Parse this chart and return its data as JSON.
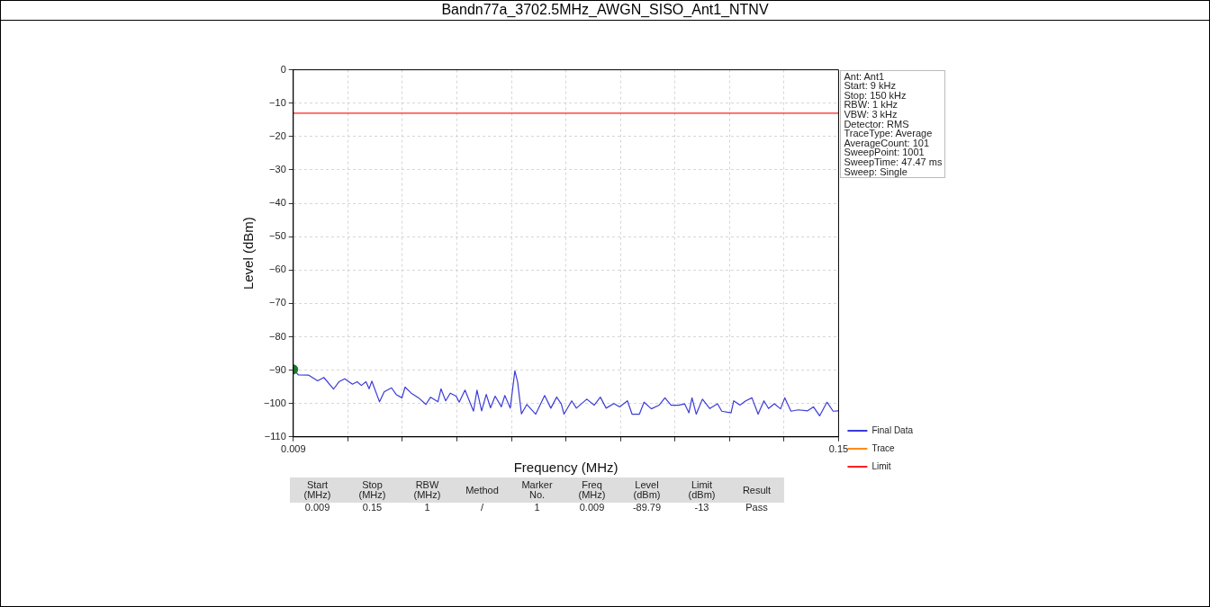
{
  "chart_data": {
    "type": "line",
    "title": "Bandn77a_3702.5MHz_AWGN_SISO_Ant1_NTNV",
    "xlabel": "Frequency (MHz)",
    "ylabel": "Level (dBm)",
    "xlim": [
      0.009,
      0.15
    ],
    "xticks": [
      0.009,
      {
        "value": 0.0231,
        "label": null
      },
      {
        "value": 0.0372,
        "label": null
      },
      {
        "value": 0.0513,
        "label": null
      },
      {
        "value": 0.0654,
        "label": null
      },
      {
        "value": 0.0795,
        "label": null
      },
      {
        "value": 0.0936,
        "label": null
      },
      {
        "value": 0.1077,
        "label": null
      },
      {
        "value": 0.1218,
        "label": null
      },
      {
        "value": 0.1359,
        "label": null
      },
      0.15
    ],
    "ylim": [
      -110,
      0
    ],
    "yticks": [
      0,
      -10,
      -20,
      -30,
      -40,
      -50,
      -60,
      -70,
      -80,
      -90,
      -100,
      -110
    ],
    "grid": true,
    "legend": "bottom right",
    "marker": "none",
    "line_style": "solid",
    "series": [
      {
        "name": "Final Data",
        "color": "#3b3bd6",
        "x": [
          0.009,
          0.0103,
          0.013,
          0.0153,
          0.0169,
          0.0194,
          0.0208,
          0.0223,
          0.0243,
          0.0255,
          0.0266,
          0.0278,
          0.0286,
          0.0293,
          0.0313,
          0.0325,
          0.0344,
          0.0356,
          0.0371,
          0.0379,
          0.0395,
          0.0414,
          0.0433,
          0.0445,
          0.0464,
          0.0472,
          0.0484,
          0.0496,
          0.0511,
          0.0519,
          0.0534,
          0.0556,
          0.0565,
          0.0577,
          0.0589,
          0.06,
          0.0612,
          0.0628,
          0.0637,
          0.0651,
          0.0663,
          0.067,
          0.068,
          0.0694,
          0.0717,
          0.074,
          0.0756,
          0.0771,
          0.0783,
          0.079,
          0.081,
          0.0822,
          0.0849,
          0.0868,
          0.0884,
          0.0899,
          0.0919,
          0.0934,
          0.0954,
          0.0966,
          0.0985,
          0.0997,
          0.1016,
          0.1036,
          0.1051,
          0.1067,
          0.1086,
          0.1102,
          0.1113,
          0.1121,
          0.1132,
          0.1148,
          0.1167,
          0.1187,
          0.1198,
          0.1222,
          0.1229,
          0.1245,
          0.126,
          0.1276,
          0.1292,
          0.1307,
          0.1319,
          0.1334,
          0.135,
          0.1361,
          0.1377,
          0.1396,
          0.142,
          0.1435,
          0.1451,
          0.147,
          0.1486,
          0.15
        ],
        "values": [
          -89.8,
          -91.4,
          -91.5,
          -93.2,
          -92.2,
          -95.7,
          -93.5,
          -92.6,
          -94.2,
          -93.5,
          -94.6,
          -93.5,
          -95.6,
          -93.3,
          -99.5,
          -96.5,
          -95.3,
          -97.3,
          -98.3,
          -95.1,
          -96.9,
          -98.3,
          -100.3,
          -98.1,
          -99.5,
          -95.6,
          -99.2,
          -96.9,
          -97.8,
          -99.6,
          -96,
          -102.3,
          -96,
          -102.2,
          -97.3,
          -101.3,
          -97.8,
          -101,
          -97.6,
          -101.4,
          -90.2,
          -93.5,
          -103.1,
          -100.3,
          -103.2,
          -97.6,
          -101.4,
          -98.1,
          -100.1,
          -103.2,
          -99.2,
          -101.4,
          -98.7,
          -100.5,
          -98.1,
          -101.4,
          -100,
          -101,
          -99.2,
          -103.2,
          -103.2,
          -99.6,
          -101.6,
          -100.5,
          -98.3,
          -100.5,
          -100.5,
          -100.1,
          -102.8,
          -98.3,
          -103.2,
          -98.7,
          -101.5,
          -100.1,
          -102.3,
          -102.8,
          -99.2,
          -100.5,
          -99.2,
          -98.3,
          -103.2,
          -99.2,
          -101.5,
          -100.1,
          -101.6,
          -98.3,
          -102.3,
          -101.9,
          -102.2,
          -101,
          -103.7,
          -99.6,
          -102.3,
          -102.2
        ]
      },
      {
        "name": "Trace",
        "color": "#ff8c1a"
      },
      {
        "name": "Limit",
        "color": "#ff2020",
        "x": [
          0.009,
          0.15
        ],
        "values": [
          -13,
          -13
        ]
      },
      {
        "type": "scatter",
        "marker": "circle",
        "color": "#1a7a2a",
        "x": [
          0.009
        ],
        "values": [
          -89.8
        ]
      }
    ],
    "annotations": [
      "Ant: Ant1\nStart: 9 kHz\nStop: 150 kHz\nRBW: 1 kHz\nVBW: 3 kHz\nDetector: RMS\nTraceType: Average\nAverageCount: 101\nSweepPoint: 1001\nSweepTime: 47.47 ms\nSweep: Single",
      "Start\n(MHz)",
      "Stop\n(MHz)",
      "RBW\n(MHz)",
      "Method",
      "Marker\nNo.",
      "Freq\n(MHz)",
      "Level\n(dBm)",
      "Limit\n(dBm)",
      "Result",
      "0.009",
      "0.15",
      "1",
      "/",
      "1",
      "0.009",
      "-89.79",
      "-13",
      "Pass"
    ]
  }
}
